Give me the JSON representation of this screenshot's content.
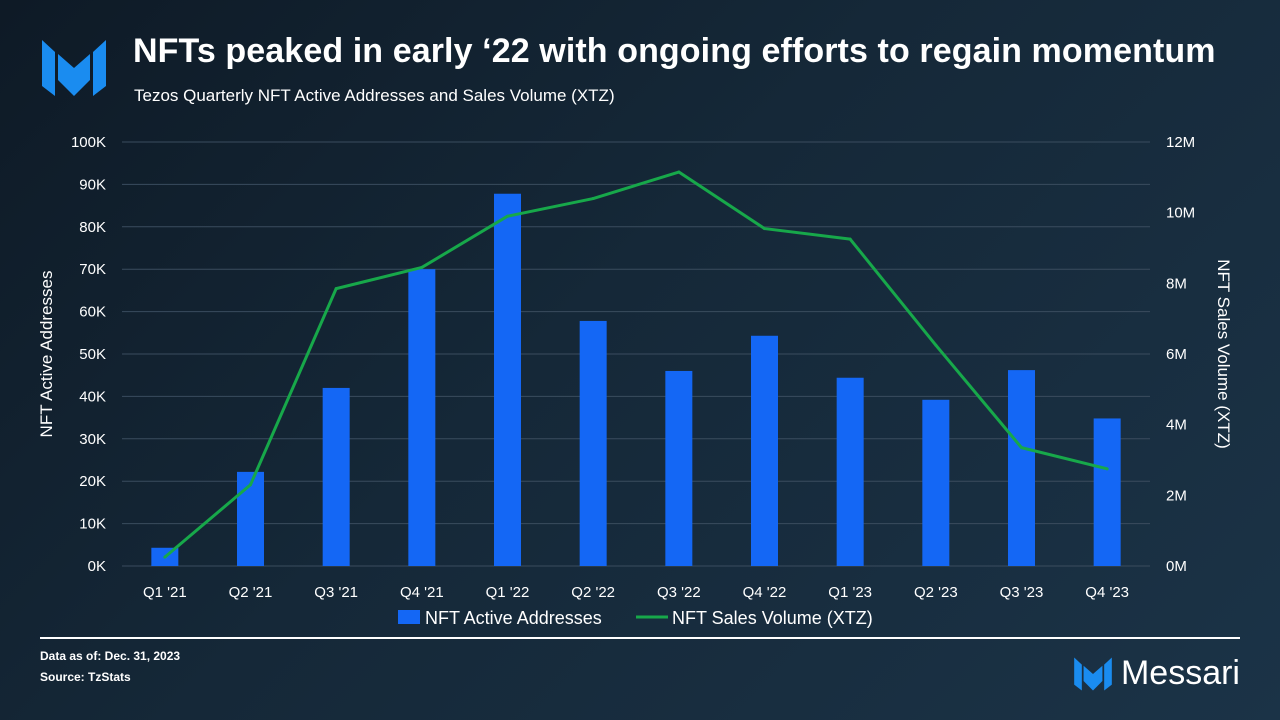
{
  "header": {
    "title": "NFTs peaked in early ‘22 with ongoing efforts to regain momentum",
    "subtitle": "Tezos Quarterly NFT Active Addresses and Sales Volume (XTZ)"
  },
  "footer": {
    "data_as_of": "Data as of: Dec. 31, 2023",
    "source": "Source: TzStats",
    "brand_name": "Messari"
  },
  "colors": {
    "bar": "#1467f5",
    "line": "#17a84a",
    "logo": "#1a8cf0",
    "grid": "#3a4c5e"
  },
  "chart_data": {
    "type": "bar",
    "categories": [
      "Q1 '21",
      "Q2 '21",
      "Q3 '21",
      "Q4 '21",
      "Q1 '22",
      "Q2 '22",
      "Q3 '22",
      "Q4 '22",
      "Q1 '23",
      "Q2 '23",
      "Q3 '23",
      "Q4 '23"
    ],
    "series": [
      {
        "name": "NFT Active Addresses",
        "type": "bar",
        "axis": "left",
        "values": [
          4300,
          22200,
          42000,
          70000,
          87800,
          57800,
          46000,
          54300,
          44400,
          39200,
          46200,
          34800
        ]
      },
      {
        "name": "NFT Sales Volume (XTZ)",
        "type": "line",
        "axis": "right",
        "values": [
          250000,
          2300000,
          7850000,
          8450000,
          9900000,
          10400000,
          11150000,
          9550000,
          9250000,
          6250000,
          3350000,
          2750000
        ]
      }
    ],
    "ylabel": "NFT Active Addresses",
    "y2label": "NFT Sales Volume (XTZ)",
    "ylim": [
      0,
      100000
    ],
    "y2lim": [
      0,
      12000000
    ],
    "yticks": [
      "0K",
      "10K",
      "20K",
      "30K",
      "40K",
      "50K",
      "60K",
      "70K",
      "80K",
      "90K",
      "100K"
    ],
    "y2ticks": [
      "0M",
      "2M",
      "4M",
      "6M",
      "8M",
      "10M",
      "12M"
    ],
    "grid": true,
    "legend": "bottom-center"
  }
}
